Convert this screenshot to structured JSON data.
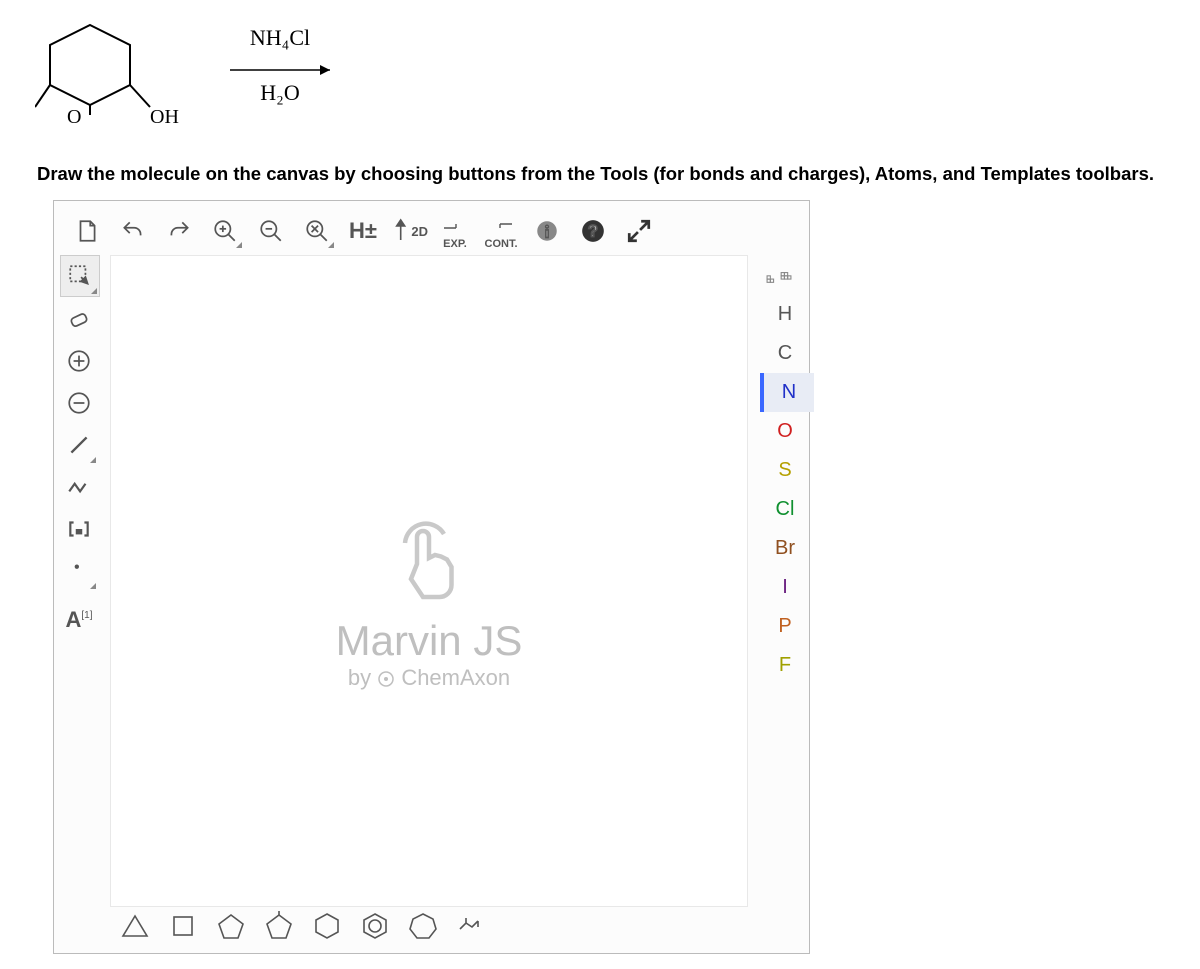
{
  "reaction": {
    "reagent_top": "NH₄Cl",
    "reagent_bottom": "H₂O",
    "labels": {
      "o1": "O",
      "oh": "OH"
    }
  },
  "instruction": "Draw the molecule on the canvas by choosing buttons from the Tools (for bonds and charges), Atoms, and Templates toolbars.",
  "top_toolbar": {
    "hplusminus": "H±",
    "twod": "2D",
    "exp": "EXP.",
    "cont": "CONT."
  },
  "left_toolbar": {
    "annotation": "A",
    "annotation_sup": "[1]"
  },
  "atoms": [
    {
      "sym": "H",
      "color": "#555555",
      "selected": false
    },
    {
      "sym": "C",
      "color": "#555555",
      "selected": false
    },
    {
      "sym": "N",
      "color": "#2030c8",
      "selected": true
    },
    {
      "sym": "O",
      "color": "#d02020",
      "selected": false
    },
    {
      "sym": "S",
      "color": "#b5a000",
      "selected": false
    },
    {
      "sym": "Cl",
      "color": "#109030",
      "selected": false
    },
    {
      "sym": "Br",
      "color": "#905020",
      "selected": false
    },
    {
      "sym": "I",
      "color": "#6a2080",
      "selected": false
    },
    {
      "sym": "P",
      "color": "#c06020",
      "selected": false
    },
    {
      "sym": "F",
      "color": "#a0a000",
      "selected": false
    }
  ],
  "watermark": {
    "title": "Marvin JS",
    "byline_prefix": "by ",
    "byline_brand": "ChemAxon"
  }
}
